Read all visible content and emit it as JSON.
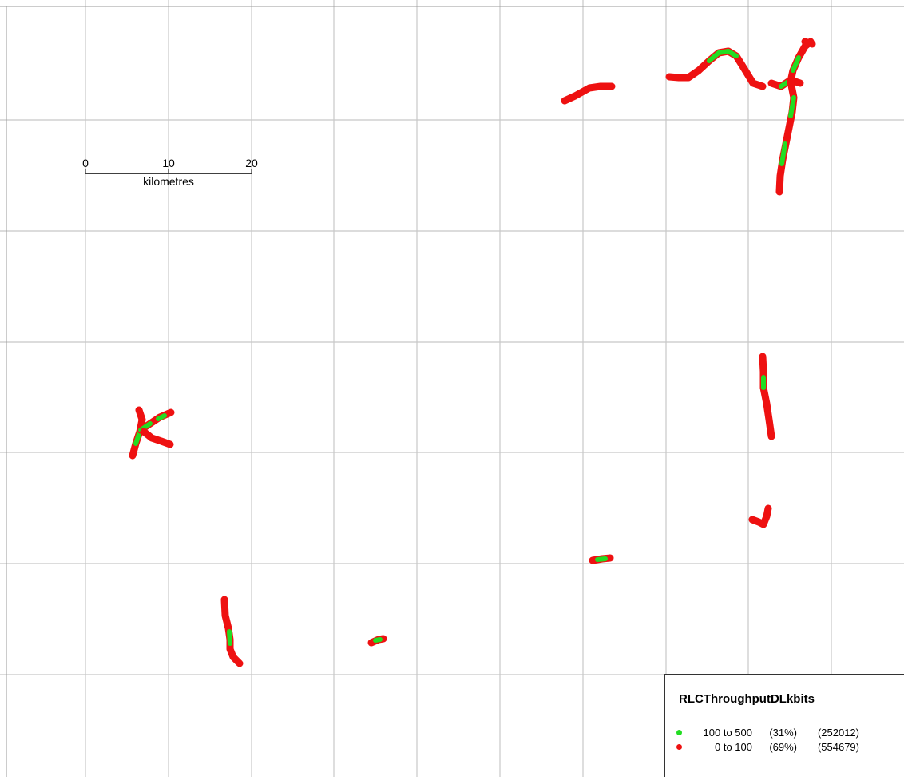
{
  "colors": {
    "good": "#22dd22",
    "bad": "#ee1111",
    "grid": "#c8c8c8"
  },
  "scale_bar": {
    "ticks": [
      "0",
      "10",
      "20"
    ],
    "unit": "kilometres"
  },
  "legend": {
    "title": "RLCThroughputDLkbits",
    "items": [
      {
        "range": "100 to 500",
        "percent": "(31%)",
        "count": "(252012)",
        "color_key": "good"
      },
      {
        "range": "0 to 100",
        "percent": "(69%)",
        "count": "(554679)",
        "color_key": "bad"
      }
    ]
  }
}
